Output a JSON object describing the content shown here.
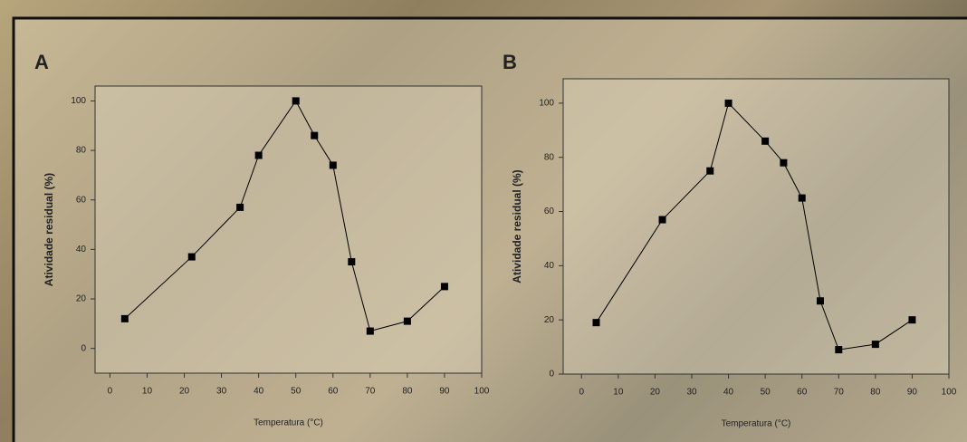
{
  "chart_data": [
    {
      "type": "line",
      "title": "A",
      "x_label": "Temperatura (°C)",
      "y_label": "Atividade residual (%)",
      "x": [
        4,
        22,
        35,
        40,
        50,
        55,
        60,
        65,
        70,
        80,
        90
      ],
      "series": [
        {
          "color": "#000000",
          "values": [
            12,
            37,
            57,
            78,
            100,
            86,
            74,
            35,
            7,
            11,
            25
          ]
        }
      ],
      "xlim": [
        -4,
        100
      ],
      "ylim": [
        -10,
        106
      ],
      "xticks": [
        0,
        10,
        20,
        30,
        40,
        50,
        60,
        70,
        80,
        90,
        100
      ],
      "yticks": [
        0,
        20,
        40,
        60,
        80,
        100
      ]
    },
    {
      "type": "line",
      "title": "B",
      "x_label": "Temperatura (°C)",
      "y_label": "Atividade residual (%)",
      "x": [
        4,
        22,
        35,
        40,
        50,
        55,
        60,
        65,
        70,
        80,
        90
      ],
      "series": [
        {
          "color": "#000000",
          "values": [
            19,
            57,
            75,
            100,
            86,
            78,
            65,
            27,
            9,
            11,
            20
          ]
        }
      ],
      "xlim": [
        -5,
        100
      ],
      "ylim": [
        0,
        109
      ],
      "xticks": [
        0,
        10,
        20,
        30,
        40,
        50,
        60,
        70,
        80,
        90,
        100
      ],
      "yticks": [
        0,
        20,
        40,
        60,
        80,
        100
      ]
    }
  ]
}
